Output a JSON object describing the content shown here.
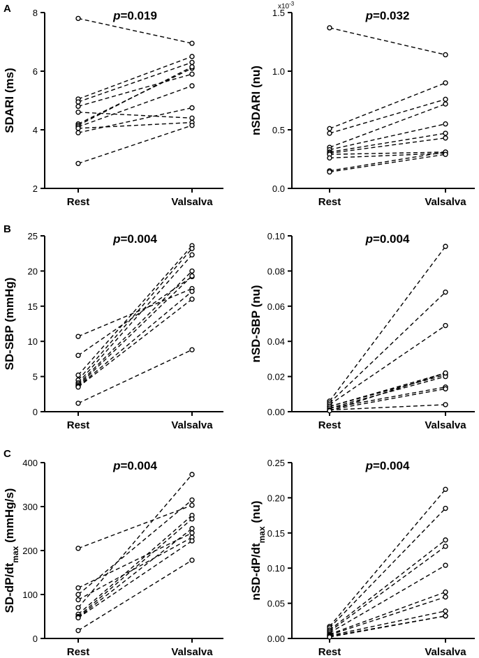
{
  "panel_letters": [
    "A",
    "B",
    "C"
  ],
  "chart_data": [
    {
      "type": "line",
      "panel": "A",
      "categories": [
        "Rest",
        "Valsalva"
      ],
      "ylabel": "SDARI (ms)",
      "annotation": {
        "p_symbol": "p",
        "p_value": "=0.019"
      },
      "ylim": [
        2,
        8
      ],
      "yticks": [
        "2",
        "4",
        "6",
        "8"
      ],
      "ytick_values": [
        2,
        4,
        6,
        8
      ],
      "series": [
        {
          "values": [
            7.8,
            6.95
          ]
        },
        {
          "values": [
            5.05,
            6.5
          ]
        },
        {
          "values": [
            4.95,
            6.3
          ]
        },
        {
          "values": [
            4.8,
            5.9
          ]
        },
        {
          "values": [
            4.6,
            4.4
          ]
        },
        {
          "values": [
            4.2,
            6.1
          ]
        },
        {
          "values": [
            4.15,
            6.15
          ]
        },
        {
          "values": [
            4.1,
            5.5
          ]
        },
        {
          "values": [
            4.05,
            4.25
          ]
        },
        {
          "values": [
            3.9,
            4.75
          ]
        },
        {
          "values": [
            2.85,
            4.15
          ]
        }
      ]
    },
    {
      "type": "line",
      "panel": "A",
      "categories": [
        "Rest",
        "Valsalva"
      ],
      "ylabel": "nSDARI (nu)",
      "annotation": {
        "p_symbol": "p",
        "p_value": "=0.032"
      },
      "exponent": "x10",
      "exponent_power": "-3",
      "ylim": [
        0,
        1.5
      ],
      "yticks": [
        "0.0",
        "0.5",
        "1.0",
        "1.5"
      ],
      "ytick_values": [
        0,
        0.5,
        1.0,
        1.5
      ],
      "series": [
        {
          "values": [
            1.37,
            1.14
          ]
        },
        {
          "values": [
            0.51,
            0.9
          ]
        },
        {
          "values": [
            0.47,
            0.76
          ]
        },
        {
          "values": [
            0.35,
            0.72
          ]
        },
        {
          "values": [
            0.33,
            0.55
          ]
        },
        {
          "values": [
            0.31,
            0.47
          ]
        },
        {
          "values": [
            0.3,
            0.43
          ]
        },
        {
          "values": [
            0.29,
            0.31
          ]
        },
        {
          "values": [
            0.26,
            0.3
          ]
        },
        {
          "values": [
            0.15,
            0.31
          ]
        },
        {
          "values": [
            0.14,
            0.29
          ]
        }
      ]
    },
    {
      "type": "line",
      "panel": "B",
      "categories": [
        "Rest",
        "Valsalva"
      ],
      "ylabel": "SD-SBP (mmHg)",
      "annotation": {
        "p_symbol": "p",
        "p_value": "=0.004"
      },
      "ylim": [
        0,
        25
      ],
      "yticks": [
        "0",
        "5",
        "10",
        "15",
        "20",
        "25"
      ],
      "ytick_values": [
        0,
        5,
        10,
        15,
        20,
        25
      ],
      "series": [
        {
          "values": [
            10.7,
            17.5
          ]
        },
        {
          "values": [
            8.0,
            19.2
          ]
        },
        {
          "values": [
            5.2,
            23.6
          ]
        },
        {
          "values": [
            4.5,
            23.2
          ]
        },
        {
          "values": [
            4.1,
            22.3
          ]
        },
        {
          "values": [
            3.9,
            20.0
          ]
        },
        {
          "values": [
            3.7,
            19.3
          ]
        },
        {
          "values": [
            3.6,
            17.1
          ]
        },
        {
          "values": [
            3.5,
            16.0
          ]
        },
        {
          "values": [
            1.2,
            8.8
          ]
        }
      ]
    },
    {
      "type": "line",
      "panel": "B",
      "categories": [
        "Rest",
        "Valsalva"
      ],
      "ylabel": "nSD-SBP (nu)",
      "annotation": {
        "p_symbol": "p",
        "p_value": "=0.004"
      },
      "ylim": [
        0,
        0.1
      ],
      "yticks": [
        "0.00",
        "0.02",
        "0.04",
        "0.06",
        "0.08",
        "0.10"
      ],
      "ytick_values": [
        0,
        0.02,
        0.04,
        0.06,
        0.08,
        0.1
      ],
      "series": [
        {
          "values": [
            0.006,
            0.094
          ]
        },
        {
          "values": [
            0.005,
            0.068
          ]
        },
        {
          "values": [
            0.004,
            0.049
          ]
        },
        {
          "values": [
            0.003,
            0.022
          ]
        },
        {
          "values": [
            0.003,
            0.021
          ]
        },
        {
          "values": [
            0.002,
            0.02
          ]
        },
        {
          "values": [
            0.002,
            0.014
          ]
        },
        {
          "values": [
            0.001,
            0.013
          ]
        },
        {
          "values": [
            0.001,
            0.004
          ]
        },
        {
          "values": [
            0.0005,
            0.022
          ]
        }
      ]
    },
    {
      "type": "line",
      "panel": "C",
      "categories": [
        "Rest",
        "Valsalva"
      ],
      "ylabel": "SD-dP/dt",
      "ylabel_sub": "max",
      "ylabel_unit": " (mmHg/s)",
      "annotation": {
        "p_symbol": "p",
        "p_value": "=0.004"
      },
      "ylim": [
        0,
        400
      ],
      "yticks": [
        "0",
        "100",
        "200",
        "300",
        "400"
      ],
      "ytick_values": [
        0,
        100,
        200,
        300,
        400
      ],
      "series": [
        {
          "values": [
            205,
            303
          ]
        },
        {
          "values": [
            115,
            240
          ]
        },
        {
          "values": [
            100,
            315
          ]
        },
        {
          "values": [
            88,
            230
          ]
        },
        {
          "values": [
            70,
            373
          ]
        },
        {
          "values": [
            55,
            280
          ]
        },
        {
          "values": [
            50,
            272
          ]
        },
        {
          "values": [
            48,
            250
          ]
        },
        {
          "values": [
            47,
            222
          ]
        },
        {
          "values": [
            18,
            178
          ]
        }
      ]
    },
    {
      "type": "line",
      "panel": "C",
      "categories": [
        "Rest",
        "Valsalva"
      ],
      "ylabel": "nSD-dP/dt",
      "ylabel_sub": "max",
      "ylabel_unit": " (nu)",
      "annotation": {
        "p_symbol": "p",
        "p_value": "=0.004"
      },
      "ylim": [
        0,
        0.25
      ],
      "yticks": [
        "0.00",
        "0.05",
        "0.10",
        "0.15",
        "0.20",
        "0.25"
      ],
      "ytick_values": [
        0,
        0.05,
        0.1,
        0.15,
        0.2,
        0.25
      ],
      "series": [
        {
          "values": [
            0.017,
            0.212
          ]
        },
        {
          "values": [
            0.015,
            0.185
          ]
        },
        {
          "values": [
            0.012,
            0.14
          ]
        },
        {
          "values": [
            0.01,
            0.131
          ]
        },
        {
          "values": [
            0.008,
            0.104
          ]
        },
        {
          "values": [
            0.006,
            0.066
          ]
        },
        {
          "values": [
            0.005,
            0.059
          ]
        },
        {
          "values": [
            0.004,
            0.039
          ]
        },
        {
          "values": [
            0.003,
            0.032
          ]
        },
        {
          "values": [
            0.002,
            0.032
          ]
        }
      ]
    }
  ]
}
